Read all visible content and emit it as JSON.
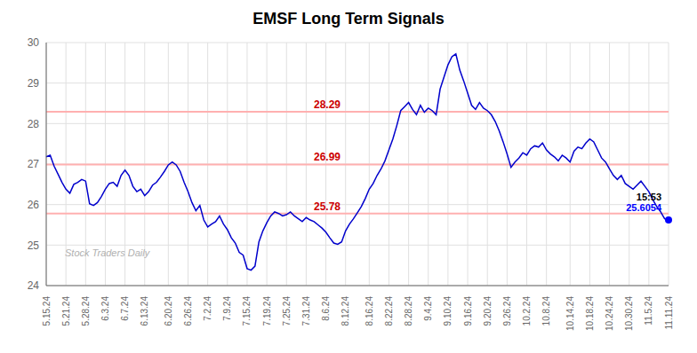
{
  "chart_data": {
    "type": "line",
    "title": "EMSF Long Term Signals",
    "categories": [
      "5.15.24",
      null,
      null,
      null,
      null,
      "5.21.24",
      null,
      null,
      null,
      null,
      "5.28.24",
      null,
      null,
      null,
      null,
      "6.3.24",
      null,
      null,
      null,
      null,
      "6.7.24",
      null,
      null,
      null,
      null,
      "6.13.24",
      null,
      null,
      null,
      null,
      null,
      "6.20.24",
      null,
      null,
      null,
      null,
      "6.26.24",
      null,
      null,
      null,
      null,
      "7.2.24",
      null,
      null,
      null,
      null,
      "7.9.24",
      null,
      null,
      null,
      null,
      "7.15.24",
      null,
      null,
      null,
      null,
      "7.19.24",
      null,
      null,
      null,
      null,
      "7.25.24",
      null,
      null,
      null,
      null,
      "7.31.24",
      null,
      null,
      null,
      null,
      "8.6.24",
      null,
      null,
      null,
      null,
      "8.12.24",
      null,
      null,
      null,
      null,
      null,
      "8.16.24",
      null,
      null,
      null,
      null,
      "8.22.24",
      null,
      null,
      null,
      null,
      "8.28.24",
      null,
      null,
      null,
      null,
      "9.4.24",
      null,
      null,
      null,
      null,
      "9.10.24",
      null,
      null,
      null,
      null,
      "9.16.24",
      null,
      null,
      null,
      null,
      "9.20.24",
      null,
      null,
      null,
      null,
      "9.26.24",
      null,
      null,
      null,
      null,
      "10.2.24",
      null,
      null,
      null,
      null,
      "10.8.24",
      null,
      null,
      null,
      null,
      null,
      "10.14.24",
      null,
      null,
      null,
      null,
      "10.18.24",
      null,
      null,
      null,
      null,
      "10.24.24",
      null,
      null,
      null,
      null,
      "10.30.24",
      null,
      null,
      null,
      null,
      "11.5.24",
      null,
      null,
      null,
      null,
      "11.11.24"
    ],
    "values": [
      27.18,
      27.22,
      26.95,
      26.75,
      26.55,
      26.38,
      26.28,
      26.5,
      26.55,
      26.62,
      26.58,
      26.02,
      25.98,
      26.05,
      26.2,
      26.38,
      26.52,
      26.55,
      26.45,
      26.72,
      26.85,
      26.72,
      26.45,
      26.32,
      26.38,
      26.22,
      26.32,
      26.48,
      26.55,
      26.68,
      26.82,
      26.98,
      27.05,
      26.98,
      26.82,
      26.55,
      26.32,
      26.05,
      25.85,
      25.98,
      25.62,
      25.45,
      25.52,
      25.58,
      25.72,
      25.52,
      25.38,
      25.18,
      25.05,
      24.82,
      24.75,
      24.42,
      24.38,
      24.48,
      25.08,
      25.35,
      25.55,
      25.72,
      25.82,
      25.78,
      25.72,
      25.75,
      25.82,
      25.72,
      25.65,
      25.58,
      25.68,
      25.62,
      25.58,
      25.5,
      25.42,
      25.32,
      25.18,
      25.05,
      25.02,
      25.08,
      25.35,
      25.52,
      25.65,
      25.8,
      25.95,
      26.15,
      26.38,
      26.52,
      26.72,
      26.88,
      27.08,
      27.35,
      27.62,
      27.95,
      28.32,
      28.42,
      28.52,
      28.35,
      28.22,
      28.45,
      28.28,
      28.38,
      28.32,
      28.22,
      28.85,
      29.15,
      29.45,
      29.65,
      29.72,
      29.32,
      29.05,
      28.75,
      28.45,
      28.35,
      28.52,
      28.38,
      28.32,
      28.22,
      28.05,
      27.82,
      27.55,
      27.25,
      26.92,
      27.05,
      27.15,
      27.28,
      27.22,
      27.38,
      27.45,
      27.42,
      27.52,
      27.35,
      27.25,
      27.18,
      27.08,
      27.22,
      27.15,
      27.05,
      27.32,
      27.42,
      27.38,
      27.52,
      27.62,
      27.55,
      27.35,
      27.15,
      27.05,
      26.88,
      26.72,
      26.62,
      26.72,
      26.52,
      26.45,
      26.38,
      26.48,
      26.58,
      26.45,
      26.32,
      26.12,
      25.95,
      25.82,
      25.65,
      25.62
    ],
    "color": "#0000cc",
    "ylim": [
      24,
      30
    ],
    "yticks": [
      24,
      25,
      26,
      27,
      28,
      29,
      30
    ],
    "grid": true,
    "reference_lines": [
      {
        "y": 28.29,
        "label": "28.29",
        "color": "#ffb0b0",
        "label_color": "#cc0000"
      },
      {
        "y": 26.99,
        "label": "26.99",
        "color": "#ffb0b0",
        "label_color": "#cc0000"
      },
      {
        "y": 25.78,
        "label": "25.78",
        "color": "#ffb0b0",
        "label_color": "#cc0000"
      }
    ],
    "end_marker": {
      "color": "#0000ff",
      "texts": [
        {
          "text": "15:53"
        },
        {
          "text": "25.6054",
          "color": "#0000ff"
        }
      ]
    },
    "watermark": {
      "text": "Stock Traders Daily",
      "color": "#b0b0b0"
    }
  }
}
